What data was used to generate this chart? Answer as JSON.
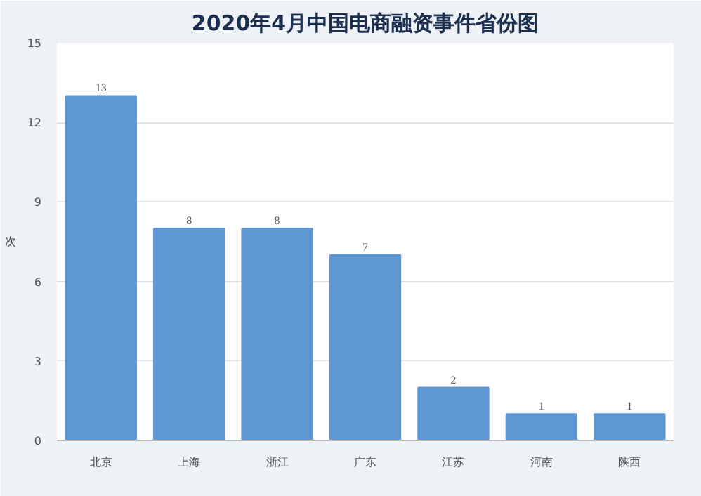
{
  "chart_data": {
    "type": "bar",
    "title": "2020年4月中国电商融资事件省份图",
    "ylabel": "次",
    "categories": [
      "北京",
      "上海",
      "浙江",
      "广东",
      "江苏",
      "河南",
      "陕西"
    ],
    "values": [
      13,
      8,
      8,
      7,
      2,
      1,
      1
    ],
    "color": "#5f97d3",
    "ylim": [
      0,
      15
    ],
    "yticks": [
      0,
      3,
      6,
      9,
      12,
      15
    ],
    "grid": "y",
    "data_labels": true
  }
}
